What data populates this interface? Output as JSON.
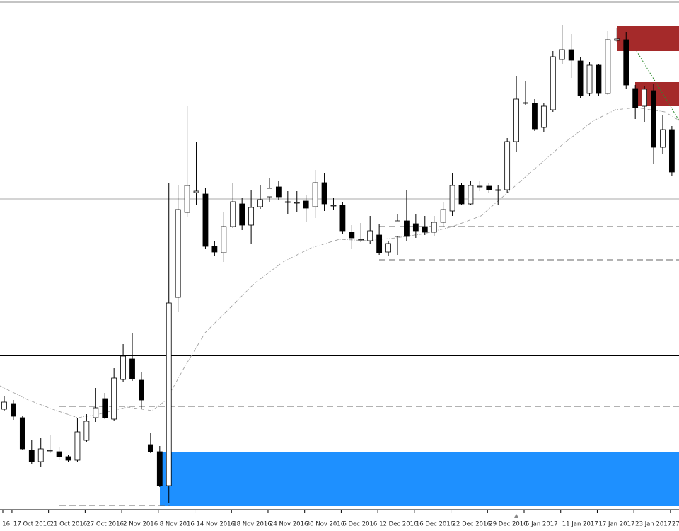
{
  "chart_data": {
    "type": "candlestick",
    "categories": [
      "16",
      "17 Oct 2016",
      null,
      null,
      null,
      "21 Oct 2016",
      null,
      null,
      null,
      "27 Oct 2016",
      null,
      null,
      null,
      "2 Nov 2016",
      null,
      null,
      null,
      "8 Nov 2016",
      null,
      null,
      null,
      "14 Nov 2016",
      null,
      null,
      null,
      "18 Nov 2016",
      null,
      null,
      null,
      "24 Nov 2016",
      null,
      null,
      null,
      "30 Nov 2016",
      null,
      null,
      null,
      "6 Dec 2016",
      null,
      null,
      null,
      "12 Dec 2016",
      null,
      null,
      null,
      "16 Dec 2016",
      null,
      null,
      null,
      "22 Dec 2016",
      null,
      null,
      null,
      "29 Dec 2016",
      null,
      null,
      null,
      "5 Jan 2017",
      null,
      null,
      null,
      "11 Jan 2017",
      null,
      null,
      null,
      "17 Jan 2017",
      null,
      null,
      null,
      "23 Jan 2017",
      null,
      null,
      null,
      "27"
    ],
    "open": [
      142,
      150,
      130,
      84,
      68,
      84,
      82,
      75,
      70,
      98,
      130,
      157,
      128,
      184,
      213,
      183,
      92,
      82,
      34,
      300,
      420,
      448,
      446,
      372,
      363,
      400,
      432,
      402,
      428,
      442,
      456,
      435,
      434,
      436,
      428,
      462,
      430,
      430,
      392,
      382,
      380,
      388,
      364,
      386,
      408,
      404,
      400,
      392,
      406,
      422,
      458,
      432,
      457,
      457,
      452,
      452,
      520,
      575,
      574,
      540,
      565,
      636,
      650,
      634,
      588,
      628,
      588,
      663,
      664,
      595,
      570,
      592,
      512,
      537
    ],
    "high": [
      160,
      155,
      132,
      98,
      102,
      106,
      88,
      77,
      130,
      135,
      172,
      165,
      200,
      234,
      250,
      195,
      108,
      90,
      462,
      458,
      570,
      520,
      455,
      380,
      420,
      462,
      440,
      452,
      458,
      468,
      465,
      450,
      450,
      445,
      480,
      476,
      440,
      434,
      402,
      405,
      415,
      404,
      380,
      418,
      452,
      418,
      415,
      415,
      435,
      475,
      462,
      465,
      464,
      462,
      458,
      525,
      612,
      605,
      580,
      575,
      648,
      684,
      672,
      640,
      632,
      630,
      676,
      680,
      675,
      600,
      598,
      602,
      558,
      542
    ],
    "low": [
      140,
      127,
      84,
      65,
      60,
      80,
      70,
      68,
      68,
      95,
      124,
      128,
      125,
      180,
      182,
      142,
      80,
      32,
      10,
      280,
      414,
      430,
      368,
      358,
      350,
      398,
      395,
      375,
      425,
      435,
      438,
      418,
      420,
      406,
      412,
      422,
      424,
      390,
      368,
      378,
      375,
      360,
      358,
      360,
      380,
      384,
      388,
      387,
      400,
      415,
      430,
      430,
      450,
      448,
      430,
      448,
      505,
      572,
      535,
      534,
      562,
      630,
      610,
      582,
      584,
      585,
      586,
      660,
      594,
      552,
      548,
      488,
      502,
      472
    ],
    "close": [
      152,
      132,
      86,
      68,
      86,
      84,
      75,
      70,
      110,
      125,
      144,
      130,
      186,
      217,
      185,
      155,
      82,
      34,
      292,
      424,
      458,
      450,
      372,
      364,
      400,
      435,
      402,
      427,
      438,
      454,
      442,
      434,
      434,
      426,
      462,
      432,
      430,
      394,
      384,
      382,
      394,
      363,
      376,
      408,
      386,
      394,
      392,
      406,
      424,
      458,
      432,
      458,
      457,
      452,
      452,
      520,
      580,
      575,
      538,
      570,
      640,
      650,
      635,
      585,
      628,
      588,
      664,
      665,
      600,
      568,
      594,
      512,
      537,
      477
    ],
    "ylim": [
      0,
      720
    ],
    "up_color": "#ffffff",
    "down_color": "#000000"
  }
}
